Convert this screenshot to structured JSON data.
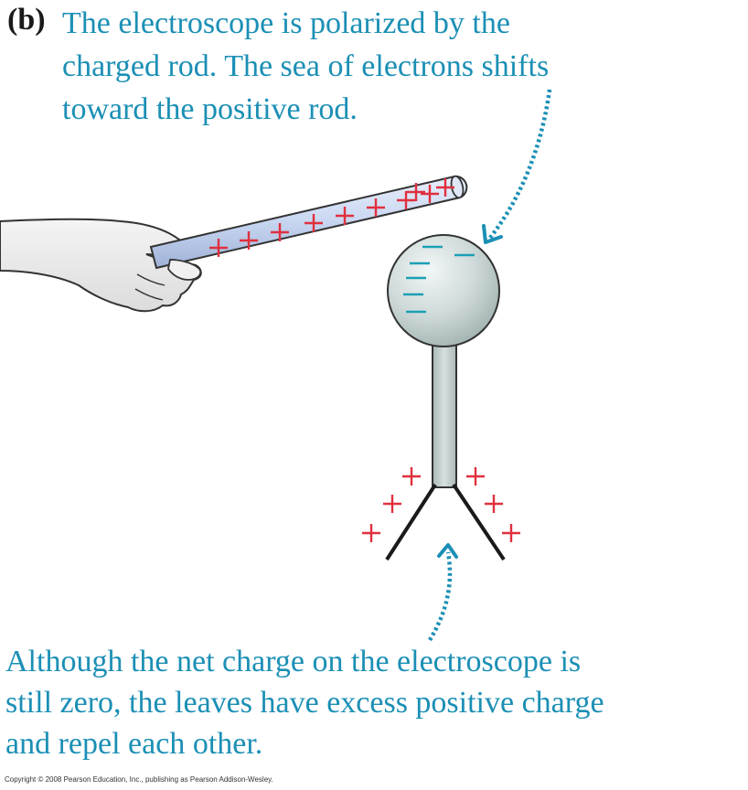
{
  "figure": {
    "panel_label": "(b)",
    "top_caption": {
      "lines": [
        "The electroscope is polarized by the",
        "charged rod. The sea of electrons shifts",
        "toward the positive rod."
      ]
    },
    "bottom_caption": {
      "lines": [
        "Although the net charge on the electroscope is",
        "still zero, the leaves have excess positive charge",
        "and repel each other."
      ]
    },
    "copyright": "Copyright © 2008 Pearson Education, Inc., publishing as Pearson Addison-Wesley.",
    "colors": {
      "caption": "#1b8fb5",
      "positive_charge": "#e0303e",
      "negative_charge": "#1ba0b4",
      "electroscope": "#c6d4d3",
      "rod": "#c9d8f0"
    },
    "charges": {
      "rod_positive_count": 10,
      "sphere_negative_count": 6,
      "left_leaf_positive_count": 3,
      "right_leaf_positive_count": 3
    }
  }
}
